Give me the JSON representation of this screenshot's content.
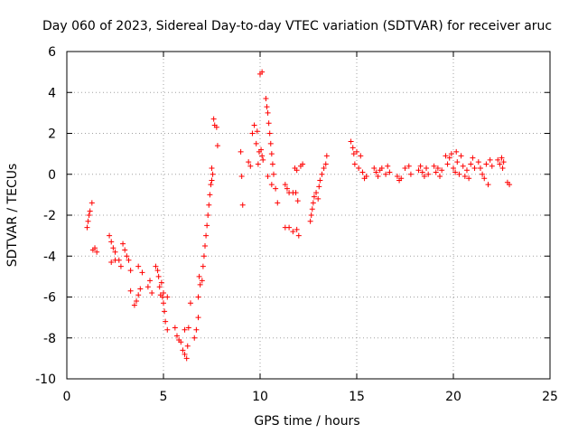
{
  "chart_data": {
    "type": "scatter",
    "title": "Day 060 of 2023, Sidereal Day-to-day VTEC variation (SDTVAR) for receiver aruc",
    "xlabel": "GPS time / hours",
    "ylabel": "SDTVAR / TECUs",
    "xlim": [
      0,
      25
    ],
    "ylim": [
      -10,
      6
    ],
    "xticks": [
      0,
      5,
      10,
      15,
      20,
      25
    ],
    "yticks": [
      -10,
      -8,
      -6,
      -4,
      -2,
      0,
      2,
      4,
      6
    ],
    "xtick_labels": [
      "0",
      "5",
      "10",
      "15",
      "20",
      "25"
    ],
    "ytick_labels": [
      "-10",
      "-8",
      "-6",
      "-4",
      "-2",
      "0",
      "2",
      "4",
      "6"
    ],
    "grid": true,
    "marker": "+",
    "marker_color": "#ff0000",
    "series": [
      {
        "name": "SDTVAR",
        "points": [
          [
            1.05,
            -2.6
          ],
          [
            1.1,
            -2.3
          ],
          [
            1.15,
            -2.0
          ],
          [
            1.2,
            -1.8
          ],
          [
            1.3,
            -1.4
          ],
          [
            1.35,
            -3.7
          ],
          [
            1.45,
            -3.6
          ],
          [
            1.55,
            -3.8
          ],
          [
            2.2,
            -3.0
          ],
          [
            2.3,
            -3.3
          ],
          [
            2.4,
            -3.6
          ],
          [
            2.5,
            -3.8
          ],
          [
            2.3,
            -4.3
          ],
          [
            2.5,
            -4.2
          ],
          [
            2.7,
            -4.2
          ],
          [
            2.8,
            -4.5
          ],
          [
            2.9,
            -3.4
          ],
          [
            3.0,
            -3.7
          ],
          [
            3.1,
            -4.0
          ],
          [
            3.2,
            -4.2
          ],
          [
            3.3,
            -4.7
          ],
          [
            3.3,
            -5.7
          ],
          [
            3.5,
            -6.4
          ],
          [
            3.6,
            -6.2
          ],
          [
            3.7,
            -5.9
          ],
          [
            3.8,
            -5.6
          ],
          [
            3.7,
            -4.5
          ],
          [
            3.9,
            -4.8
          ],
          [
            4.2,
            -5.5
          ],
          [
            4.3,
            -5.2
          ],
          [
            4.4,
            -5.8
          ],
          [
            4.6,
            -4.5
          ],
          [
            4.7,
            -4.7
          ],
          [
            4.75,
            -5.0
          ],
          [
            4.8,
            -5.5
          ],
          [
            4.85,
            -5.9
          ],
          [
            4.9,
            -5.3
          ],
          [
            4.95,
            -6.0
          ],
          [
            5.0,
            -6.3
          ],
          [
            5.0,
            -5.8
          ],
          [
            5.05,
            -6.7
          ],
          [
            5.1,
            -7.2
          ],
          [
            5.2,
            -7.6
          ],
          [
            5.2,
            -6.0
          ],
          [
            5.6,
            -7.5
          ],
          [
            5.7,
            -7.9
          ],
          [
            5.8,
            -8.1
          ],
          [
            5.9,
            -8.2
          ],
          [
            6.0,
            -8.6
          ],
          [
            6.1,
            -8.8
          ],
          [
            6.2,
            -9.0
          ],
          [
            6.25,
            -8.4
          ],
          [
            6.1,
            -7.6
          ],
          [
            6.3,
            -7.5
          ],
          [
            6.4,
            -6.3
          ],
          [
            6.6,
            -8.0
          ],
          [
            6.7,
            -7.6
          ],
          [
            6.8,
            -7.0
          ],
          [
            6.8,
            -6.0
          ],
          [
            6.85,
            -5.0
          ],
          [
            6.9,
            -5.4
          ],
          [
            7.0,
            -5.2
          ],
          [
            7.05,
            -4.5
          ],
          [
            7.1,
            -4.0
          ],
          [
            7.15,
            -3.5
          ],
          [
            7.2,
            -3.0
          ],
          [
            7.25,
            -2.5
          ],
          [
            7.3,
            -2.0
          ],
          [
            7.35,
            -1.5
          ],
          [
            7.4,
            -1.0
          ],
          [
            7.45,
            -0.5
          ],
          [
            7.5,
            -0.3
          ],
          [
            7.5,
            0.3
          ],
          [
            7.55,
            0.0
          ],
          [
            7.6,
            2.7
          ],
          [
            7.65,
            2.4
          ],
          [
            7.75,
            2.3
          ],
          [
            7.8,
            1.4
          ],
          [
            9.0,
            1.1
          ],
          [
            9.05,
            -0.1
          ],
          [
            9.1,
            -1.5
          ],
          [
            9.4,
            0.6
          ],
          [
            9.5,
            0.4
          ],
          [
            9.6,
            2.0
          ],
          [
            9.7,
            2.4
          ],
          [
            9.8,
            1.5
          ],
          [
            9.85,
            2.1
          ],
          [
            9.9,
            0.5
          ],
          [
            9.95,
            1.1
          ],
          [
            10.0,
            4.9
          ],
          [
            10.1,
            5.0
          ],
          [
            10.05,
            1.2
          ],
          [
            10.1,
            0.9
          ],
          [
            10.15,
            0.7
          ],
          [
            10.3,
            3.7
          ],
          [
            10.35,
            3.3
          ],
          [
            10.4,
            3.0
          ],
          [
            10.45,
            2.5
          ],
          [
            10.5,
            2.0
          ],
          [
            10.55,
            1.5
          ],
          [
            10.6,
            1.0
          ],
          [
            10.65,
            0.5
          ],
          [
            10.7,
            0.0
          ],
          [
            10.4,
            -0.1
          ],
          [
            10.6,
            -0.5
          ],
          [
            10.8,
            -0.7
          ],
          [
            10.9,
            -1.4
          ],
          [
            11.3,
            -0.5
          ],
          [
            11.4,
            -0.7
          ],
          [
            11.5,
            -0.9
          ],
          [
            11.3,
            -2.6
          ],
          [
            11.5,
            -2.6
          ],
          [
            11.7,
            -2.8
          ],
          [
            11.9,
            -2.7
          ],
          [
            12.0,
            -3.0
          ],
          [
            11.7,
            -0.9
          ],
          [
            11.85,
            -0.9
          ],
          [
            11.95,
            -1.3
          ],
          [
            11.8,
            0.3
          ],
          [
            11.9,
            0.2
          ],
          [
            12.1,
            0.4
          ],
          [
            12.2,
            0.5
          ],
          [
            12.6,
            -2.3
          ],
          [
            12.65,
            -2.0
          ],
          [
            12.7,
            -1.7
          ],
          [
            12.75,
            -1.4
          ],
          [
            12.8,
            -1.1
          ],
          [
            12.9,
            -0.9
          ],
          [
            13.0,
            -1.2
          ],
          [
            13.05,
            -0.6
          ],
          [
            13.1,
            -0.3
          ],
          [
            13.2,
            0.0
          ],
          [
            13.3,
            0.3
          ],
          [
            13.4,
            0.5
          ],
          [
            13.45,
            0.9
          ],
          [
            14.7,
            1.6
          ],
          [
            14.8,
            1.3
          ],
          [
            14.85,
            1.0
          ],
          [
            14.9,
            0.5
          ],
          [
            15.0,
            1.1
          ],
          [
            15.1,
            0.3
          ],
          [
            15.2,
            0.9
          ],
          [
            15.3,
            0.1
          ],
          [
            15.4,
            -0.2
          ],
          [
            15.5,
            -0.1
          ],
          [
            15.9,
            0.3
          ],
          [
            16.0,
            0.1
          ],
          [
            16.1,
            -0.1
          ],
          [
            16.2,
            0.2
          ],
          [
            16.3,
            0.3
          ],
          [
            16.5,
            0.0
          ],
          [
            16.6,
            0.4
          ],
          [
            16.7,
            0.1
          ],
          [
            17.1,
            -0.1
          ],
          [
            17.2,
            -0.3
          ],
          [
            17.3,
            -0.2
          ],
          [
            17.5,
            0.3
          ],
          [
            17.7,
            0.4
          ],
          [
            17.8,
            0.0
          ],
          [
            18.2,
            0.2
          ],
          [
            18.3,
            0.4
          ],
          [
            18.4,
            0.1
          ],
          [
            18.5,
            -0.1
          ],
          [
            18.6,
            0.3
          ],
          [
            18.7,
            0.0
          ],
          [
            19.0,
            0.4
          ],
          [
            19.1,
            0.1
          ],
          [
            19.2,
            0.3
          ],
          [
            19.3,
            -0.1
          ],
          [
            19.4,
            0.2
          ],
          [
            19.6,
            0.9
          ],
          [
            19.7,
            0.5
          ],
          [
            19.8,
            0.8
          ],
          [
            19.9,
            1.0
          ],
          [
            20.0,
            0.3
          ],
          [
            20.1,
            0.1
          ],
          [
            20.15,
            1.1
          ],
          [
            20.2,
            0.6
          ],
          [
            20.3,
            0.0
          ],
          [
            20.4,
            0.9
          ],
          [
            20.5,
            0.4
          ],
          [
            20.6,
            -0.1
          ],
          [
            20.7,
            0.2
          ],
          [
            20.8,
            -0.2
          ],
          [
            20.9,
            0.5
          ],
          [
            21.0,
            0.8
          ],
          [
            21.1,
            0.3
          ],
          [
            21.3,
            0.6
          ],
          [
            21.4,
            0.3
          ],
          [
            21.5,
            0.0
          ],
          [
            21.6,
            -0.2
          ],
          [
            21.7,
            0.5
          ],
          [
            21.8,
            -0.5
          ],
          [
            21.9,
            0.7
          ],
          [
            22.0,
            0.4
          ],
          [
            22.3,
            0.7
          ],
          [
            22.4,
            0.5
          ],
          [
            22.5,
            0.8
          ],
          [
            22.55,
            0.3
          ],
          [
            22.6,
            0.6
          ],
          [
            22.8,
            -0.4
          ],
          [
            22.9,
            -0.5
          ]
        ]
      }
    ]
  }
}
